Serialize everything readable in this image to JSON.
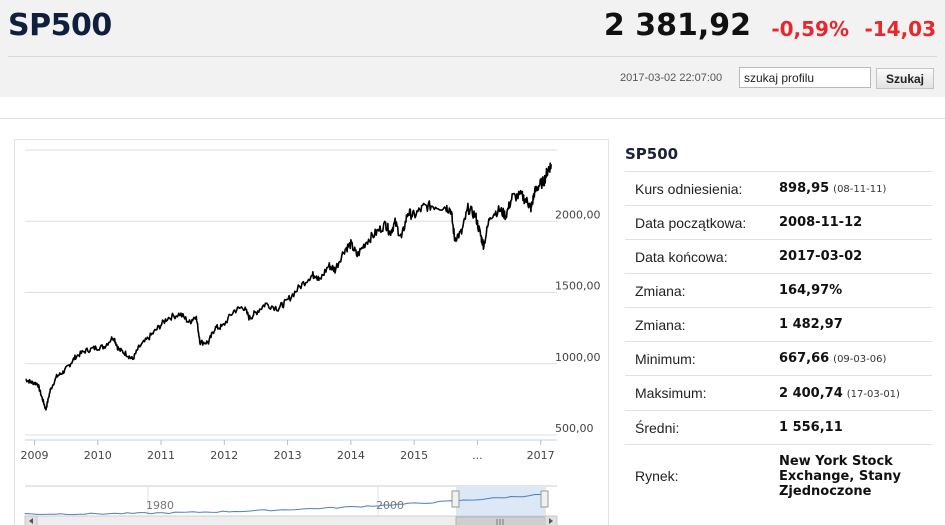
{
  "header": {
    "title": "SP500",
    "price": "2 381,92",
    "change_pct": "-0,59%",
    "change_abs": "-14,03",
    "timestamp": "2017-03-02 22:07:00",
    "search_value": "szukaj profilu",
    "search_button": "Szukaj"
  },
  "colors": {
    "negative": "#e8262d",
    "title": "#0f1f3d",
    "navigator": "#4a7fbf",
    "selection": "#dde8f6"
  },
  "chart_data": {
    "type": "line",
    "series": [
      {
        "values": [
          [
            2008.86,
            890
          ],
          [
            2008.95,
            870
          ],
          [
            2009.05,
            860
          ],
          [
            2009.12,
            760
          ],
          [
            2009.18,
            680
          ],
          [
            2009.25,
            815
          ],
          [
            2009.35,
            910
          ],
          [
            2009.45,
            940
          ],
          [
            2009.55,
            990
          ],
          [
            2009.65,
            1050
          ],
          [
            2009.8,
            1090
          ],
          [
            2009.95,
            1110
          ],
          [
            2010.1,
            1120
          ],
          [
            2010.25,
            1190
          ],
          [
            2010.33,
            1100
          ],
          [
            2010.45,
            1070
          ],
          [
            2010.55,
            1030
          ],
          [
            2010.65,
            1115
          ],
          [
            2010.8,
            1180
          ],
          [
            2010.95,
            1250
          ],
          [
            2011.1,
            1320
          ],
          [
            2011.3,
            1350
          ],
          [
            2011.45,
            1290
          ],
          [
            2011.55,
            1340
          ],
          [
            2011.62,
            1150
          ],
          [
            2011.75,
            1150
          ],
          [
            2011.85,
            1250
          ],
          [
            2011.97,
            1260
          ],
          [
            2012.15,
            1370
          ],
          [
            2012.3,
            1400
          ],
          [
            2012.4,
            1320
          ],
          [
            2012.5,
            1360
          ],
          [
            2012.65,
            1420
          ],
          [
            2012.85,
            1390
          ],
          [
            2012.97,
            1430
          ],
          [
            2013.15,
            1520
          ],
          [
            2013.35,
            1610
          ],
          [
            2013.45,
            1630
          ],
          [
            2013.5,
            1580
          ],
          [
            2013.65,
            1690
          ],
          [
            2013.75,
            1660
          ],
          [
            2013.9,
            1800
          ],
          [
            2014.0,
            1840
          ],
          [
            2014.1,
            1760
          ],
          [
            2014.25,
            1860
          ],
          [
            2014.4,
            1920
          ],
          [
            2014.55,
            1980
          ],
          [
            2014.62,
            1920
          ],
          [
            2014.7,
            1990
          ],
          [
            2014.8,
            1880
          ],
          [
            2014.9,
            2060
          ],
          [
            2015.0,
            2040
          ],
          [
            2015.15,
            2100
          ],
          [
            2015.3,
            2110
          ],
          [
            2015.5,
            2100
          ],
          [
            2015.58,
            2080
          ],
          [
            2015.64,
            1880
          ],
          [
            2015.75,
            1920
          ],
          [
            2015.85,
            2090
          ],
          [
            2015.97,
            2040
          ],
          [
            2016.05,
            1900
          ],
          [
            2016.1,
            1830
          ],
          [
            2016.2,
            2040
          ],
          [
            2016.35,
            2080
          ],
          [
            2016.45,
            2040
          ],
          [
            2016.55,
            2170
          ],
          [
            2016.7,
            2180
          ],
          [
            2016.8,
            2130
          ],
          [
            2016.85,
            2090
          ],
          [
            2016.9,
            2200
          ],
          [
            2016.97,
            2250
          ],
          [
            2017.05,
            2280
          ],
          [
            2017.12,
            2370
          ],
          [
            2017.17,
            2395
          ]
        ]
      }
    ],
    "x_ticks": [
      "2009",
      "2010",
      "2011",
      "2012",
      "2013",
      "2014",
      "2015",
      "...",
      "2017"
    ],
    "y_ticks": [
      "500,00",
      "1000,00",
      "1500,00",
      "2000,00"
    ],
    "ylim": [
      500,
      2500
    ],
    "grid": true,
    "navigator_ticks": [
      "1980",
      "2000"
    ]
  },
  "info": {
    "title": "SP500",
    "rows": [
      {
        "label": "Kurs odniesienia:",
        "value": "898,95",
        "date": "(08-11-11)"
      },
      {
        "label": "Data początkowa:",
        "value": "2008-11-12",
        "date": ""
      },
      {
        "label": "Data końcowa:",
        "value": "2017-03-02",
        "date": ""
      },
      {
        "label": "Zmiana:",
        "value": "164,97%",
        "date": ""
      },
      {
        "label": "Zmiana:",
        "value": "1 482,97",
        "date": ""
      },
      {
        "label": "Minimum:",
        "value": "667,66",
        "date": "(09-03-06)"
      },
      {
        "label": "Maksimum:",
        "value": "2 400,74",
        "date": "(17-03-01)"
      },
      {
        "label": "Średni:",
        "value": "1 556,11",
        "date": ""
      },
      {
        "label": "Rynek:",
        "value": "New York Stock Exchange, Stany Zjednoczone",
        "date": ""
      }
    ]
  }
}
